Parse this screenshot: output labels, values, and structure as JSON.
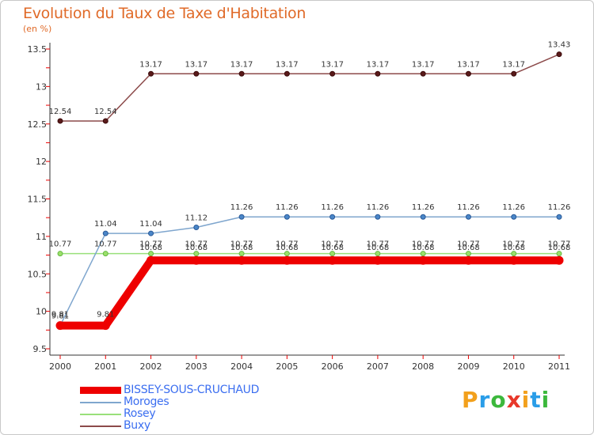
{
  "header": {
    "title": "Evolution du Taux de Taxe d'Habitation",
    "unit": "(en %)"
  },
  "logo": {
    "letters": [
      "P",
      "r",
      "o",
      "x",
      "i",
      "t",
      "i"
    ],
    "colors": [
      "#f2a01c",
      "#2a9de8",
      "#3cb83c",
      "#e8382a",
      "#f2a01c",
      "#2a9de8",
      "#3cb83c"
    ]
  },
  "chart_data": {
    "type": "line",
    "title": "Evolution du Taux de Taxe d'Habitation",
    "ylabel": "(en %)",
    "xlabel": "",
    "x": [
      "2000",
      "2001",
      "2002",
      "2003",
      "2004",
      "2005",
      "2006",
      "2007",
      "2008",
      "2009",
      "2010",
      "2011"
    ],
    "ylim": [
      9.5,
      13.5
    ],
    "yticks": [
      "9.5",
      "10",
      "10.5",
      "11",
      "11.5",
      "12",
      "12.5",
      "13",
      "13.5"
    ],
    "grid": false,
    "legend_position": "bottom-left",
    "series": [
      {
        "name": "BISSEY-SOUS-CRUCHAUD",
        "color": "#ee0000",
        "width": 10,
        "values": [
          9.81,
          9.81,
          10.68,
          10.68,
          10.68,
          10.68,
          10.68,
          10.68,
          10.68,
          10.68,
          10.68,
          10.68
        ],
        "labels": [
          "9.81",
          "9.81",
          "10.68",
          "10.68",
          "10.68",
          "10.68",
          "10.68",
          "10.68",
          "10.68",
          "10.68",
          "10.68",
          "10.68"
        ]
      },
      {
        "name": "Moroges",
        "color": "#7fa6ce",
        "width": 1.5,
        "values": [
          9.81,
          11.04,
          11.04,
          11.12,
          11.26,
          11.26,
          11.26,
          11.26,
          11.26,
          11.26,
          11.26,
          11.26
        ],
        "labels": [
          "9.81",
          "11.04",
          "11.04",
          "11.12",
          "11.26",
          "11.26",
          "11.26",
          "11.26",
          "11.26",
          "11.26",
          "11.26",
          "11.26"
        ]
      },
      {
        "name": "Rosey",
        "color": "#99e07a",
        "width": 1.5,
        "values": [
          10.77,
          10.77,
          10.77,
          10.77,
          10.77,
          10.77,
          10.77,
          10.77,
          10.77,
          10.77,
          10.77,
          10.77
        ],
        "labels": [
          "10.77",
          "10.77",
          "10.77",
          "10.77",
          "10.77",
          "10.77",
          "10.77",
          "10.77",
          "10.77",
          "10.77",
          "10.77",
          "10.77"
        ]
      },
      {
        "name": "Buxy",
        "color": "#8c4a4a",
        "width": 1.5,
        "values": [
          12.54,
          12.54,
          13.17,
          13.17,
          13.17,
          13.17,
          13.17,
          13.17,
          13.17,
          13.17,
          13.17,
          13.43
        ],
        "labels": [
          "12.54",
          "12.54",
          "13.17",
          "13.17",
          "13.17",
          "13.17",
          "13.17",
          "13.17",
          "13.17",
          "13.17",
          "13.17",
          "13.43"
        ]
      }
    ]
  }
}
